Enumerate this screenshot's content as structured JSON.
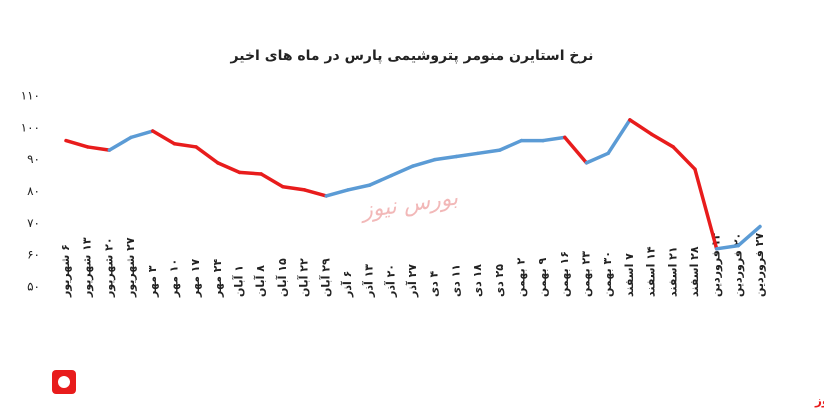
{
  "chart_data": {
    "type": "line",
    "title": "نرخ استایرن منومر پتروشیمی پارس در ماه های اخیر",
    "categories": [
      "۶ شهریور",
      "۱۳ شهریور",
      "۲۰ شهریور",
      "۲۷ شهریور",
      "۳ مهر",
      "۱۰ مهر",
      "۱۷ مهر",
      "۲۴ مهر",
      "۱ آبان",
      "۸ آبان",
      "۱۵ آبان",
      "۲۲ آبان",
      "۲۹ آبان",
      "۶ آذر",
      "۱۳ آذر",
      "۲۰ آذر",
      "۲۷ آذر",
      "۴ دی",
      "۱۱ دی",
      "۱۸ دی",
      "۲۵ دی",
      "۲ بهمن",
      "۹ بهمن",
      "۱۶ بهمن",
      "۲۳ بهمن",
      "۳۰ بهمن",
      "۷ اسفند",
      "۱۴ اسفند",
      "۲۱ اسفند",
      "۲۸ اسفند",
      "۱۳ فروردین",
      "۲۰ فروردین",
      "۲۷ فروردین"
    ],
    "values": [
      96,
      94,
      93,
      97,
      99,
      95,
      94,
      89,
      86,
      85.5,
      81.5,
      80.5,
      78.6,
      80.5,
      82,
      85,
      88,
      90,
      91,
      92,
      93,
      96,
      96,
      97,
      89,
      92,
      102.5,
      98,
      94,
      87,
      62,
      63,
      69
    ],
    "color": "#5b9bd5",
    "decline_color": "#e81c1c",
    "ylim": [
      50,
      110
    ],
    "yticks": [
      {
        "value": 50,
        "label": "۵۰"
      },
      {
        "value": 60,
        "label": "۶۰"
      },
      {
        "value": 70,
        "label": "۷۰"
      },
      {
        "value": 80,
        "label": "۸۰"
      },
      {
        "value": 90,
        "label": "۹۰"
      },
      {
        "value": 100,
        "label": "۱۰۰"
      },
      {
        "value": 110,
        "label": "۱۱۰"
      }
    ],
    "grid": false,
    "watermark": "بورس نیوز",
    "source": "بورس نیوز"
  }
}
